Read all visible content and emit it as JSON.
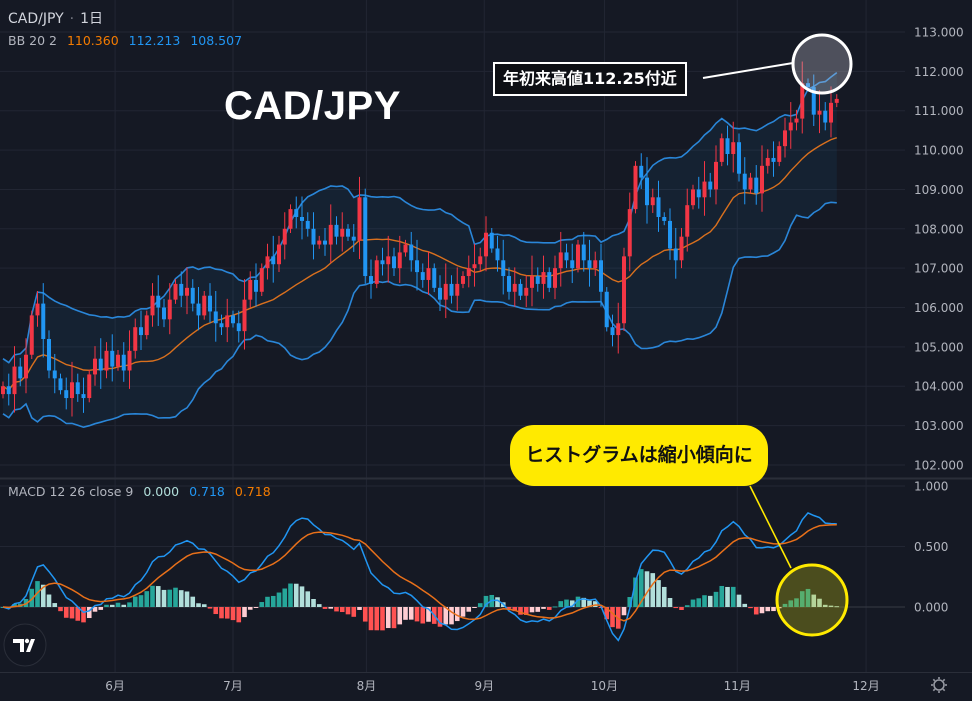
{
  "header": {
    "symbol": "CAD/JPY",
    "separator": "·",
    "interval": "1日"
  },
  "bb_legend": {
    "name": "BB 20 2",
    "basis": "110.360",
    "upper": "112.213",
    "lower": "108.507"
  },
  "macd_legend": {
    "name": "MACD 12 26 close 9",
    "histogram": "0.000",
    "macd": "0.718",
    "signal": "0.718"
  },
  "annotations": {
    "title": "CAD/JPY",
    "high_label": "年初来高値112.25付近",
    "callout": "ヒストグラムは縮小傾向に"
  },
  "icons": {
    "logo": "tradingview-logo",
    "settings": "gear-icon"
  },
  "colors": {
    "background": "#151924",
    "grid": "#222633",
    "up_candle": "#f23645",
    "down_candle": "#2196f3",
    "bb_band": "#2a86d8",
    "bb_basis": "#d9701e",
    "bb_fill": "rgba(33,150,243,0.07)",
    "macd_line": "#2196f3",
    "signal_line": "#e8701a",
    "hist_pos_grow": "#26a69a",
    "hist_pos_fall": "#b2dfdb",
    "hist_neg_grow": "#ff5252",
    "hist_neg_fall": "#ffcdd2",
    "axis_text": "#b2b5be",
    "highlight_white": "#ffffff",
    "highlight_yellow": "#ffea00"
  },
  "chart_data": {
    "type": "candlestick",
    "symbol": "CAD/JPY",
    "interval": "1日",
    "indicators": [
      "BB 20 2",
      "MACD 12 26 close 9"
    ],
    "closes": [
      104.0,
      103.8,
      104.5,
      104.2,
      104.8,
      105.8,
      106.1,
      105.2,
      104.4,
      104.2,
      103.9,
      103.7,
      104.1,
      103.8,
      103.7,
      104.3,
      104.7,
      104.4,
      104.9,
      104.5,
      104.8,
      104.4,
      104.9,
      105.5,
      105.3,
      105.8,
      106.3,
      106.0,
      105.7,
      106.2,
      106.6,
      106.3,
      106.5,
      106.1,
      105.8,
      106.3,
      105.9,
      105.6,
      105.5,
      105.8,
      105.6,
      105.4,
      106.2,
      106.7,
      106.4,
      107.0,
      107.3,
      107.1,
      107.6,
      108.0,
      108.5,
      108.3,
      108.2,
      108.0,
      107.6,
      107.7,
      107.6,
      108.1,
      107.8,
      108.0,
      107.8,
      107.7,
      108.8,
      106.8,
      106.6,
      107.2,
      107.1,
      107.3,
      107.0,
      107.4,
      107.6,
      107.2,
      106.9,
      106.7,
      107.0,
      106.5,
      106.2,
      106.6,
      106.3,
      106.6,
      106.8,
      107.0,
      107.1,
      107.3,
      107.9,
      107.5,
      107.2,
      106.8,
      106.4,
      106.6,
      106.3,
      106.5,
      106.8,
      106.6,
      106.9,
      106.5,
      107.0,
      107.4,
      107.2,
      107.0,
      107.6,
      107.2,
      107.0,
      107.2,
      106.4,
      105.5,
      105.3,
      105.6,
      107.3,
      108.5,
      109.6,
      109.3,
      108.6,
      108.8,
      108.3,
      108.2,
      107.5,
      107.2,
      107.8,
      108.6,
      109.0,
      108.8,
      109.2,
      109.0,
      109.7,
      110.3,
      109.9,
      110.2,
      109.4,
      109.0,
      109.3,
      108.9,
      109.6,
      109.8,
      109.7,
      110.1,
      110.5,
      110.7,
      110.8,
      111.7,
      111.6,
      110.9,
      111.0,
      110.7,
      111.2,
      111.3
    ],
    "month_ticks": [
      {
        "label": "6月",
        "index": 19.5
      },
      {
        "label": "7月",
        "index": 40
      },
      {
        "label": "8月",
        "index": 63.2
      },
      {
        "label": "9月",
        "index": 83.7
      },
      {
        "label": "10月",
        "index": 104.6
      },
      {
        "label": "11月",
        "index": 127.7
      },
      {
        "label": "12月",
        "index": 150.1
      }
    ],
    "price_ticks": [
      "102.000",
      "103.000",
      "104.000",
      "105.000",
      "106.000",
      "107.000",
      "108.000",
      "109.000",
      "110.000",
      "111.000",
      "112.000",
      "113.000"
    ],
    "macd_ticks": [
      "0.000",
      "0.500",
      "1.000"
    ],
    "price_ylim": [
      101.8,
      113.8
    ],
    "macd_ylim": [
      -0.55,
      1.05
    ],
    "year_high": 112.25,
    "grid": true
  }
}
